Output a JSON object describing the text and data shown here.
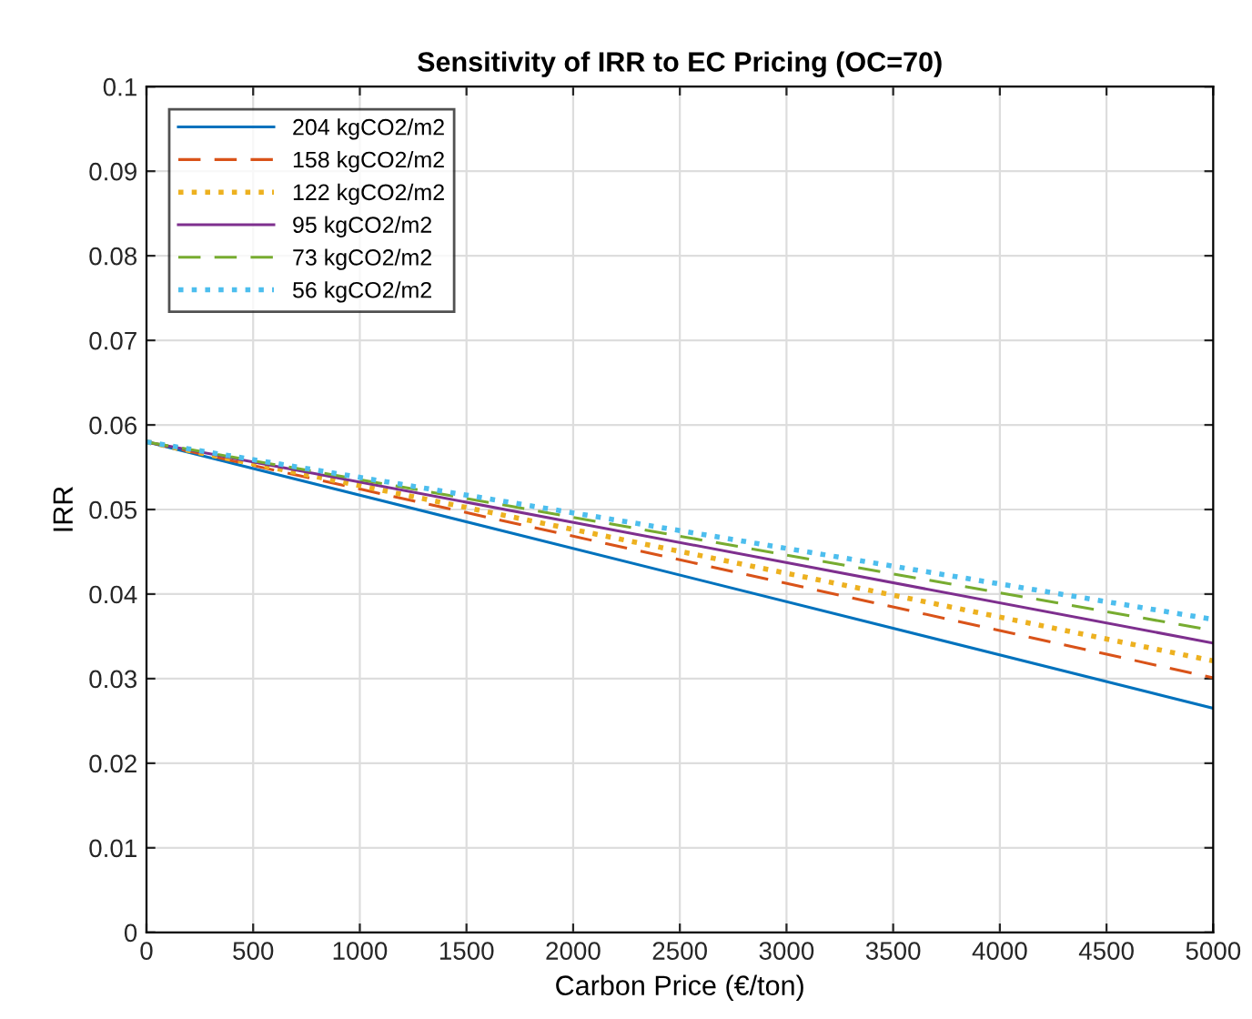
{
  "chart_data": {
    "type": "line",
    "title": "Sensitivity of IRR to EC Pricing (OC=70)",
    "xlabel": "Carbon Price (€/ton)",
    "ylabel": "IRR",
    "x": [
      0,
      5000
    ],
    "series": [
      {
        "name": "204 kgCO2/m2",
        "color": "#0072bd",
        "values": [
          0.058,
          0.0265
        ],
        "line_style": "solid"
      },
      {
        "name": "158 kgCO2/m2",
        "color": "#d95319",
        "values": [
          0.058,
          0.0301
        ],
        "line_style": "dashed"
      },
      {
        "name": "122 kgCO2/m2",
        "color": "#edb120",
        "values": [
          0.058,
          0.0321
        ],
        "line_style": "dotted"
      },
      {
        "name": "95 kgCO2/m2",
        "color": "#7e2f8e",
        "values": [
          0.058,
          0.0342
        ],
        "line_style": "solid"
      },
      {
        "name": "73 kgCO2/m2",
        "color": "#77ac30",
        "values": [
          0.058,
          0.0357
        ],
        "line_style": "dashed"
      },
      {
        "name": "56 kgCO2/m2",
        "color": "#4dbeee",
        "values": [
          0.058,
          0.037
        ],
        "line_style": "dotted"
      }
    ],
    "xlim": [
      0,
      5000
    ],
    "xticks": [
      0,
      500,
      1000,
      1500,
      2000,
      2500,
      3000,
      3500,
      4000,
      4500,
      5000
    ],
    "ylim": [
      0,
      0.1
    ],
    "yticks": [
      0,
      0.01,
      0.02,
      0.03,
      0.04,
      0.05,
      0.06,
      0.07,
      0.08,
      0.09,
      0.1
    ],
    "grid": true,
    "legend": "top left",
    "marker": "none"
  }
}
